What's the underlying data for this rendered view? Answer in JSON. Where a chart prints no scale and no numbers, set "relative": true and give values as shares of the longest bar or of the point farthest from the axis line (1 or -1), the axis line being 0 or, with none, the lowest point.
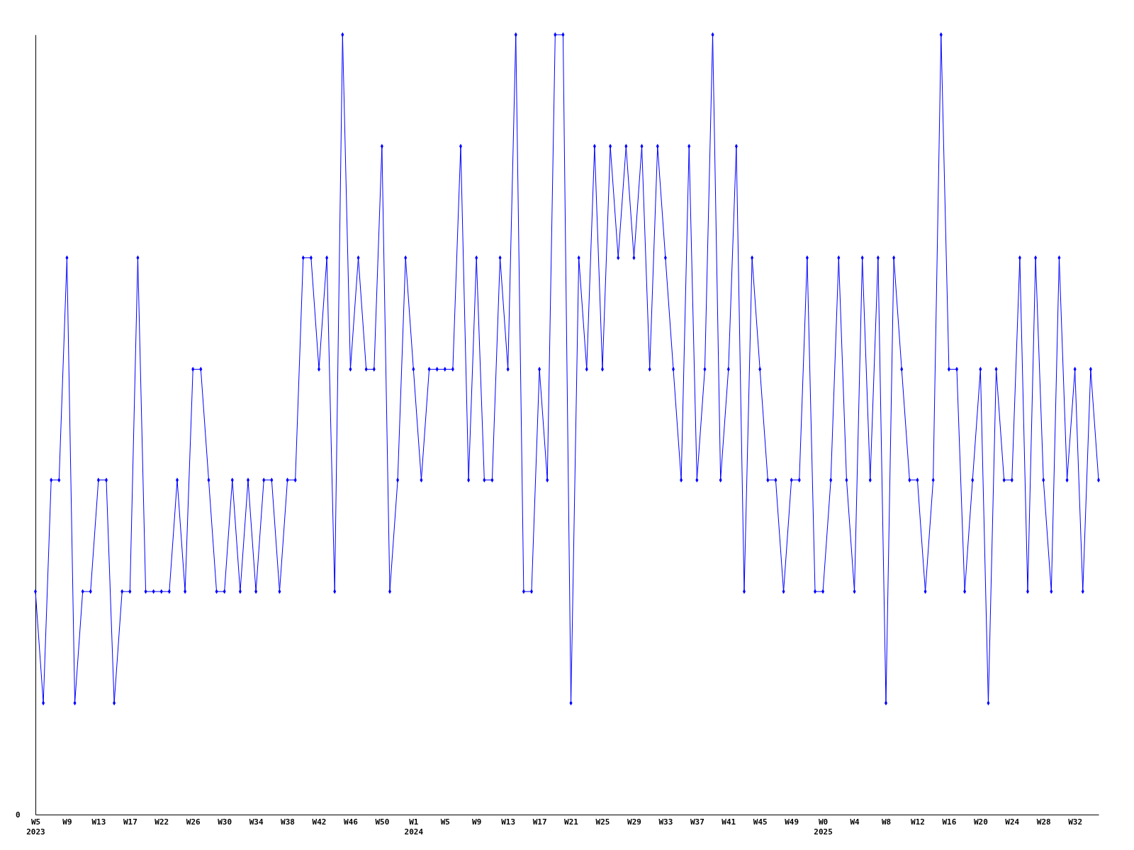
{
  "chart_data": {
    "type": "line",
    "relative": true,
    "marker": "diamond",
    "line_style": "solid",
    "annotations": [
      "0"
    ],
    "categories": [
      "W5\n2023",
      null,
      null,
      null,
      "W9",
      null,
      null,
      null,
      "W13",
      null,
      null,
      null,
      "W17",
      null,
      null,
      null,
      "W22",
      null,
      null,
      null,
      "W26",
      null,
      null,
      null,
      "W30",
      null,
      null,
      null,
      "W34",
      null,
      null,
      null,
      "W38",
      null,
      null,
      null,
      "W42",
      null,
      null,
      null,
      "W46",
      null,
      null,
      null,
      "W50",
      null,
      null,
      null,
      "W1\n2024",
      null,
      null,
      null,
      "W5",
      null,
      null,
      null,
      "W9",
      null,
      null,
      null,
      "W13",
      null,
      null,
      null,
      "W17",
      null,
      null,
      null,
      "W21",
      null,
      null,
      null,
      "W25",
      null,
      null,
      null,
      "W29",
      null,
      null,
      null,
      "W33",
      null,
      null,
      null,
      "W37",
      null,
      null,
      null,
      "W41",
      null,
      null,
      null,
      "W45",
      null,
      null,
      null,
      "W49",
      null,
      null,
      null,
      "W0\n2025",
      null,
      null,
      null,
      "W4",
      null,
      null,
      null,
      "W8",
      null,
      null,
      null,
      "W12",
      null,
      null,
      null,
      "W16",
      null,
      null,
      null,
      "W20",
      null,
      null,
      null,
      "W24",
      null,
      null,
      null,
      "W28",
      null,
      null,
      null,
      "W32",
      null,
      null,
      null
    ],
    "series": [
      {
        "color": "#0000ff",
        "values": [
          0.286,
          0.143,
          0.429,
          0.429,
          0.714,
          0.143,
          0.286,
          0.286,
          0.429,
          0.429,
          0.143,
          0.286,
          0.286,
          0.714,
          0.286,
          0.286,
          0.286,
          0.286,
          0.429,
          0.286,
          0.571,
          0.571,
          0.429,
          0.286,
          0.286,
          0.429,
          0.286,
          0.429,
          0.286,
          0.429,
          0.429,
          0.286,
          0.429,
          0.429,
          0.714,
          0.714,
          0.571,
          0.714,
          0.286,
          1,
          0.571,
          0.714,
          0.571,
          0.571,
          0.857,
          0.286,
          0.429,
          0.714,
          0.571,
          0.429,
          0.571,
          0.571,
          0.571,
          0.571,
          0.857,
          0.429,
          0.714,
          0.429,
          0.429,
          0.714,
          0.571,
          1,
          0.286,
          0.286,
          0.571,
          0.429,
          1,
          1,
          0.143,
          0.714,
          0.571,
          0.857,
          0.571,
          0.857,
          0.714,
          0.857,
          0.714,
          0.857,
          0.571,
          0.857,
          0.714,
          0.571,
          0.429,
          0.857,
          0.429,
          0.571,
          1,
          0.429,
          0.571,
          0.857,
          0.286,
          0.714,
          0.571,
          0.429,
          0.429,
          0.286,
          0.429,
          0.429,
          0.714,
          0.286,
          0.286,
          0.429,
          0.714,
          0.429,
          0.286,
          0.714,
          0.429,
          0.714,
          0.143,
          0.714,
          0.571,
          0.429,
          0.429,
          0.286,
          0.429,
          1,
          0.571,
          0.571,
          0.286,
          0.429,
          0.571,
          0.143,
          0.571,
          0.429,
          0.429,
          0.714,
          0.286,
          0.714,
          0.429,
          0.286,
          0.714,
          0.429,
          0.571,
          0.286,
          0.571,
          0.429
        ]
      }
    ]
  }
}
